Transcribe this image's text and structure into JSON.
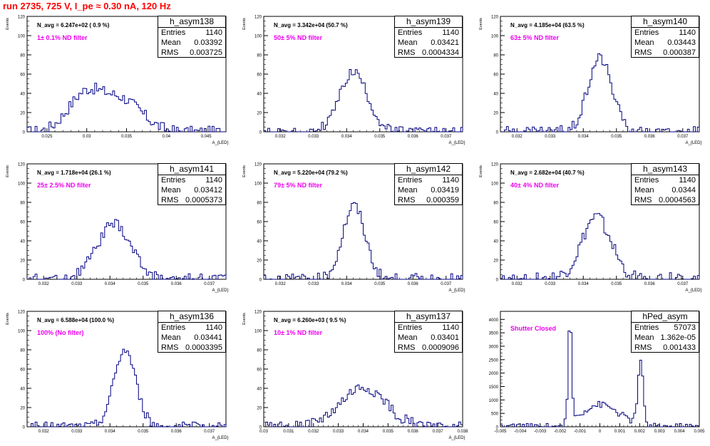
{
  "page": {
    "title": "run 2735,   725 V, I_pe ≈ 0.30 nA, 120 Hz"
  },
  "chart_data": [
    {
      "type": "histogram",
      "name": "h_asym138",
      "stats": {
        "entries_label": "Entries",
        "entries": "1140",
        "mean_label": "Mean",
        "mean": "0.03392",
        "rms_label": "RMS",
        "rms": "0.003725"
      },
      "navg_text": "N_avg = 6.247e+02 ( 0.9 %)",
      "filter_text": "1± 0.1% ND filter",
      "ylabel": "Events",
      "xlabel": "A_{LED}",
      "xlim": [
        0.0225,
        0.0475
      ],
      "ylim": [
        0,
        120
      ],
      "yticks": [
        0,
        20,
        40,
        60,
        80,
        100,
        120
      ],
      "xticks": [
        0.025,
        0.03,
        0.035,
        0.04,
        0.045
      ],
      "xtick_labels": [
        "0.025",
        "0.03",
        "0.035",
        "0.04",
        "0.045"
      ],
      "peaks": [
        {
          "x": 0.0298,
          "w": 0.0022,
          "h": 38
        },
        {
          "x": 0.0345,
          "w": 0.0025,
          "h": 32
        }
      ],
      "noise": 6
    },
    {
      "type": "histogram",
      "name": "h_asym139",
      "stats": {
        "entries_label": "Entries",
        "entries": "1140",
        "mean_label": "Mean",
        "mean": "0.03421",
        "rms_label": "RMS",
        "rms": "0.0004334"
      },
      "navg_text": "N_avg = 3.342e+04 (50.7 %)",
      "filter_text": "50± 5% ND filter",
      "ylabel": "Events",
      "xlabel": "A_{LED}",
      "xlim": [
        0.0315,
        0.0375
      ],
      "ylim": [
        0,
        120
      ],
      "yticks": [
        0,
        20,
        40,
        60,
        80,
        100,
        120
      ],
      "xticks": [
        0.032,
        0.033,
        0.034,
        0.035,
        0.036,
        0.037
      ],
      "xtick_labels": [
        "0.032",
        "0.033",
        "0.034",
        "0.035",
        "0.036",
        "0.037"
      ],
      "peaks": [
        {
          "x": 0.03421,
          "w": 0.00042,
          "h": 62
        }
      ],
      "noise": 5
    },
    {
      "type": "histogram",
      "name": "h_asym140",
      "stats": {
        "entries_label": "Entries",
        "entries": "1140",
        "mean_label": "Mean",
        "mean": "0.03443",
        "rms_label": "RMS",
        "rms": "0.000387"
      },
      "navg_text": "N_avg = 4.185e+04 (63.5 %)",
      "filter_text": "63± 5% ND filter",
      "ylabel": "Events",
      "xlabel": "A_{LED}",
      "xlim": [
        0.0315,
        0.0375
      ],
      "ylim": [
        0,
        120
      ],
      "yticks": [
        0,
        20,
        40,
        60,
        80,
        100,
        120
      ],
      "xticks": [
        0.032,
        0.033,
        0.034,
        0.035,
        0.036,
        0.037
      ],
      "xtick_labels": [
        "0.032",
        "0.033",
        "0.034",
        "0.035",
        "0.036",
        "0.037"
      ],
      "peaks": [
        {
          "x": 0.0345,
          "w": 0.00036,
          "h": 78
        }
      ],
      "noise": 6
    },
    {
      "type": "histogram",
      "name": "h_asym141",
      "stats": {
        "entries_label": "Entries",
        "entries": "1140",
        "mean_label": "Mean",
        "mean": "0.03412",
        "rms_label": "RMS",
        "rms": "0.0005373"
      },
      "navg_text": "N_avg = 1.718e+04 (26.1 %)",
      "filter_text": "25± 2.5% ND filter",
      "ylabel": "Events",
      "xlabel": "A_{LED}",
      "xlim": [
        0.0315,
        0.0375
      ],
      "ylim": [
        0,
        120
      ],
      "yticks": [
        0,
        20,
        40,
        60,
        80,
        100,
        120
      ],
      "xticks": [
        0.032,
        0.033,
        0.034,
        0.035,
        0.036,
        0.037
      ],
      "xtick_labels": [
        "0.032",
        "0.033",
        "0.034",
        "0.035",
        "0.036",
        "0.037"
      ],
      "peaks": [
        {
          "x": 0.03412,
          "w": 0.00052,
          "h": 57
        }
      ],
      "noise": 6
    },
    {
      "type": "histogram",
      "name": "h_asym142",
      "stats": {
        "entries_label": "Entries",
        "entries": "1140",
        "mean_label": "Mean",
        "mean": "0.03419",
        "rms_label": "RMS",
        "rms": "0.000359"
      },
      "navg_text": "N_avg = 5.220e+04 (79.2 %)",
      "filter_text": "79± 5% ND filter",
      "ylabel": "Events",
      "xlabel": "A_{LED}",
      "xlim": [
        0.0315,
        0.0375
      ],
      "ylim": [
        0,
        120
      ],
      "yticks": [
        0,
        20,
        40,
        60,
        80,
        100,
        120
      ],
      "xticks": [
        0.032,
        0.033,
        0.034,
        0.035,
        0.036,
        0.037
      ],
      "xtick_labels": [
        "0.032",
        "0.033",
        "0.034",
        "0.035",
        "0.036",
        "0.037"
      ],
      "peaks": [
        {
          "x": 0.03422,
          "w": 0.00034,
          "h": 76
        }
      ],
      "noise": 6
    },
    {
      "type": "histogram",
      "name": "h_asym143",
      "stats": {
        "entries_label": "Entries",
        "entries": "1140",
        "mean_label": "Mean",
        "mean": "0.0344",
        "rms_label": "RMS",
        "rms": "0.0004563"
      },
      "navg_text": "N_avg = 2.682e+04 (40.7 %)",
      "filter_text": "40± 4% ND filter",
      "ylabel": "Events",
      "xlabel": "A_{LED}",
      "xlim": [
        0.0315,
        0.0375
      ],
      "ylim": [
        0,
        120
      ],
      "yticks": [
        0,
        20,
        40,
        60,
        80,
        100,
        120
      ],
      "xticks": [
        0.032,
        0.033,
        0.034,
        0.035,
        0.036,
        0.037
      ],
      "xtick_labels": [
        "0.032",
        "0.033",
        "0.034",
        "0.035",
        "0.036",
        "0.037"
      ],
      "peaks": [
        {
          "x": 0.0344,
          "w": 0.00044,
          "h": 64
        }
      ],
      "noise": 7
    },
    {
      "type": "histogram",
      "name": "h_asym136",
      "stats": {
        "entries_label": "Entries",
        "entries": "1140",
        "mean_label": "Mean",
        "mean": "0.03441",
        "rms_label": "RMS",
        "rms": "0.0003395"
      },
      "navg_text": "N_avg = 6.588e+04 (100.0 %)",
      "filter_text": "100% (No filter)",
      "ylabel": "Events",
      "xlabel": "A_{LED}",
      "xlim": [
        0.0315,
        0.0375
      ],
      "ylim": [
        0,
        120
      ],
      "yticks": [
        0,
        20,
        40,
        60,
        80,
        100,
        120
      ],
      "xticks": [
        0.032,
        0.033,
        0.034,
        0.035,
        0.036,
        0.037
      ],
      "xtick_labels": [
        "0.032",
        "0.033",
        "0.034",
        "0.035",
        "0.036",
        "0.037"
      ],
      "peaks": [
        {
          "x": 0.03445,
          "w": 0.00033,
          "h": 80
        }
      ],
      "noise": 5
    },
    {
      "type": "histogram",
      "name": "h_asym137",
      "stats": {
        "entries_label": "Entries",
        "entries": "1140",
        "mean_label": "Mean",
        "mean": "0.03401",
        "rms_label": "RMS",
        "rms": "0.0009096"
      },
      "navg_text": "N_avg = 6.260e+03 ( 9.5 %)",
      "filter_text": "10± 1% ND filter",
      "ylabel": "Events",
      "xlabel": "A_{LED}",
      "xlim": [
        0.03,
        0.038
      ],
      "ylim": [
        0,
        120
      ],
      "yticks": [
        0,
        20,
        40,
        60,
        80,
        100,
        120
      ],
      "xticks": [
        0.03,
        0.031,
        0.032,
        0.033,
        0.034,
        0.035,
        0.036,
        0.037,
        0.038
      ],
      "xtick_labels": [
        "0.03",
        "0.031",
        "0.032",
        "0.033",
        "0.034",
        "0.035",
        "0.036",
        "0.037",
        "0.038"
      ],
      "peaks": [
        {
          "x": 0.03401,
          "w": 0.0009,
          "h": 40
        }
      ],
      "noise": 6
    },
    {
      "type": "histogram",
      "name": "hPed_asym",
      "stats": {
        "entries_label": "Entries",
        "entries": "57073",
        "mean_label": "Mean",
        "mean": "1.362e-05",
        "rms_label": "RMS",
        "rms": "0.001433"
      },
      "filter_text": "Shutter Closed",
      "xlim": [
        -0.005,
        0.005
      ],
      "ylim": [
        0,
        4300
      ],
      "yticks": [
        0,
        500,
        1000,
        1500,
        2000,
        2500,
        3000,
        3500,
        4000
      ],
      "xticks": [
        -0.005,
        -0.004,
        -0.003,
        -0.002,
        -0.001,
        0,
        0.001,
        0.002,
        0.003,
        0.004,
        0.005
      ],
      "xtick_labels": [
        "-0.005",
        "-0.004",
        "-0.003",
        "-0.002",
        "-0.001",
        "0",
        "0.001",
        "0.002",
        "0.003",
        "0.004",
        "0.005"
      ],
      "bimodal": true
    }
  ]
}
